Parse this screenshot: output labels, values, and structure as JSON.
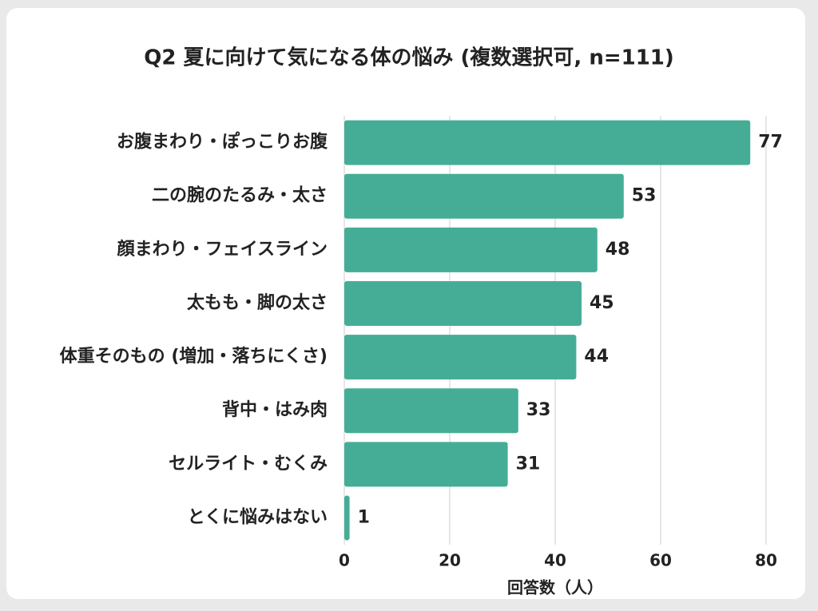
{
  "chart_data": {
    "type": "bar",
    "orientation": "horizontal",
    "title": "Q2 夏に向けて気になる体の悩み (複数選択可, n=111)",
    "categories": [
      "お腹まわり・ぽっこりお腹",
      "二の腕のたるみ・太さ",
      "顔まわり・フェイスライン",
      "太もも・脚の太さ",
      "体重そのもの (増加・落ちにくさ)",
      "背中・はみ肉",
      "セルライト・むくみ",
      "とくに悩みはない"
    ],
    "values": [
      77,
      53,
      48,
      45,
      44,
      33,
      31,
      1
    ],
    "color": "#45ad96",
    "xlabel": "回答数（人）",
    "xlim": [
      0,
      80
    ],
    "xticks": [
      0,
      20,
      40,
      60,
      80
    ],
    "grid": true
  }
}
